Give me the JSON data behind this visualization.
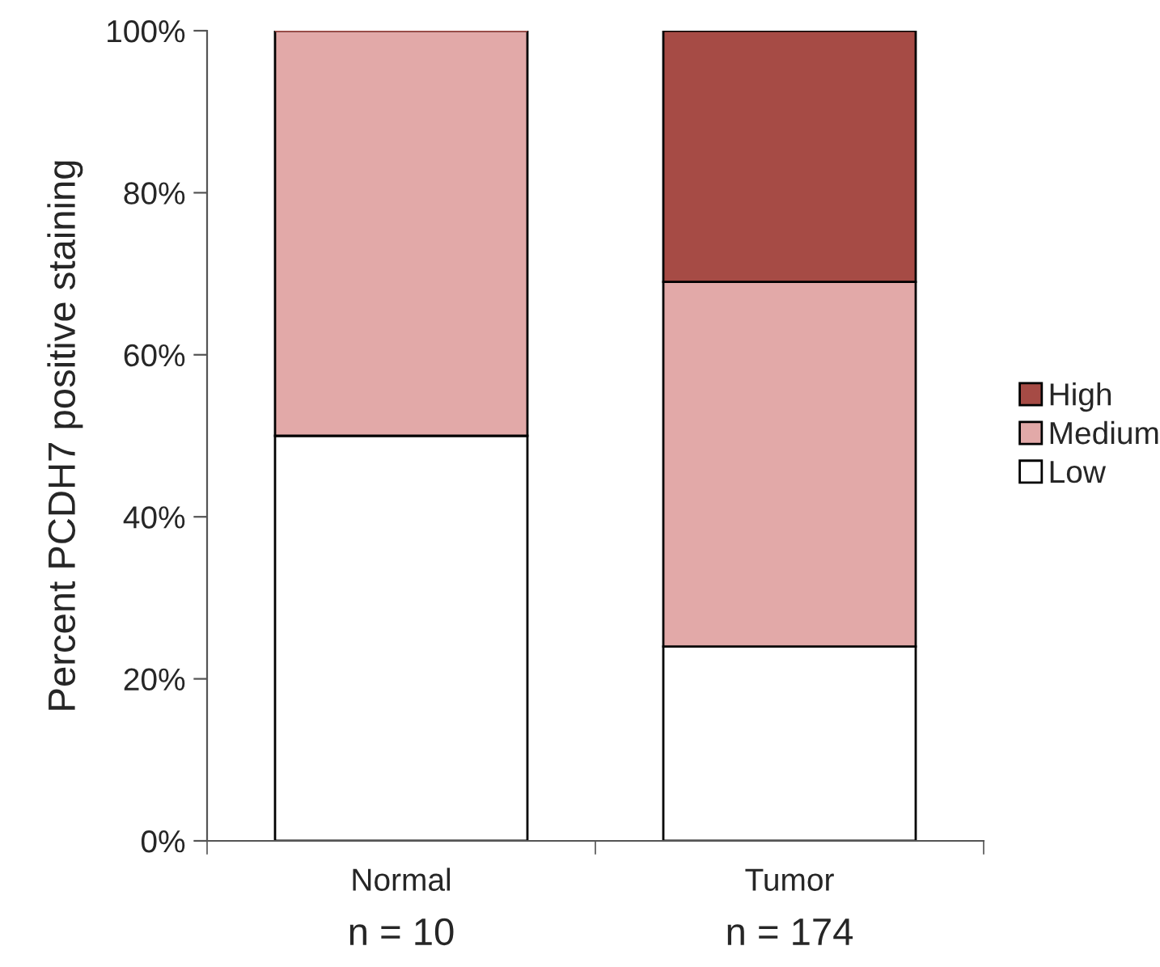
{
  "chart_data": {
    "type": "bar",
    "stacked": true,
    "ylabel": "Percent PCDH7 positive staining",
    "categories": [
      "Normal",
      "Tumor"
    ],
    "series": [
      {
        "name": "Low",
        "color": "#ffffff",
        "values": [
          50,
          24
        ]
      },
      {
        "name": "Medium",
        "color": "#e2a9a8",
        "values": [
          50,
          45
        ]
      },
      {
        "name": "High",
        "color": "#a64b45",
        "values": [
          0,
          31
        ]
      }
    ],
    "ylim": [
      0,
      100
    ],
    "yticks": [
      {
        "value": 0,
        "label": "0%"
      },
      {
        "value": 20,
        "label": "20%"
      },
      {
        "value": 40,
        "label": "40%"
      },
      {
        "value": 60,
        "label": "60%"
      },
      {
        "value": 80,
        "label": "80%"
      },
      {
        "value": 100,
        "label": "100%"
      }
    ],
    "annotations": [
      "n = 10",
      "n = 174"
    ],
    "legend": "right",
    "grid": false
  }
}
